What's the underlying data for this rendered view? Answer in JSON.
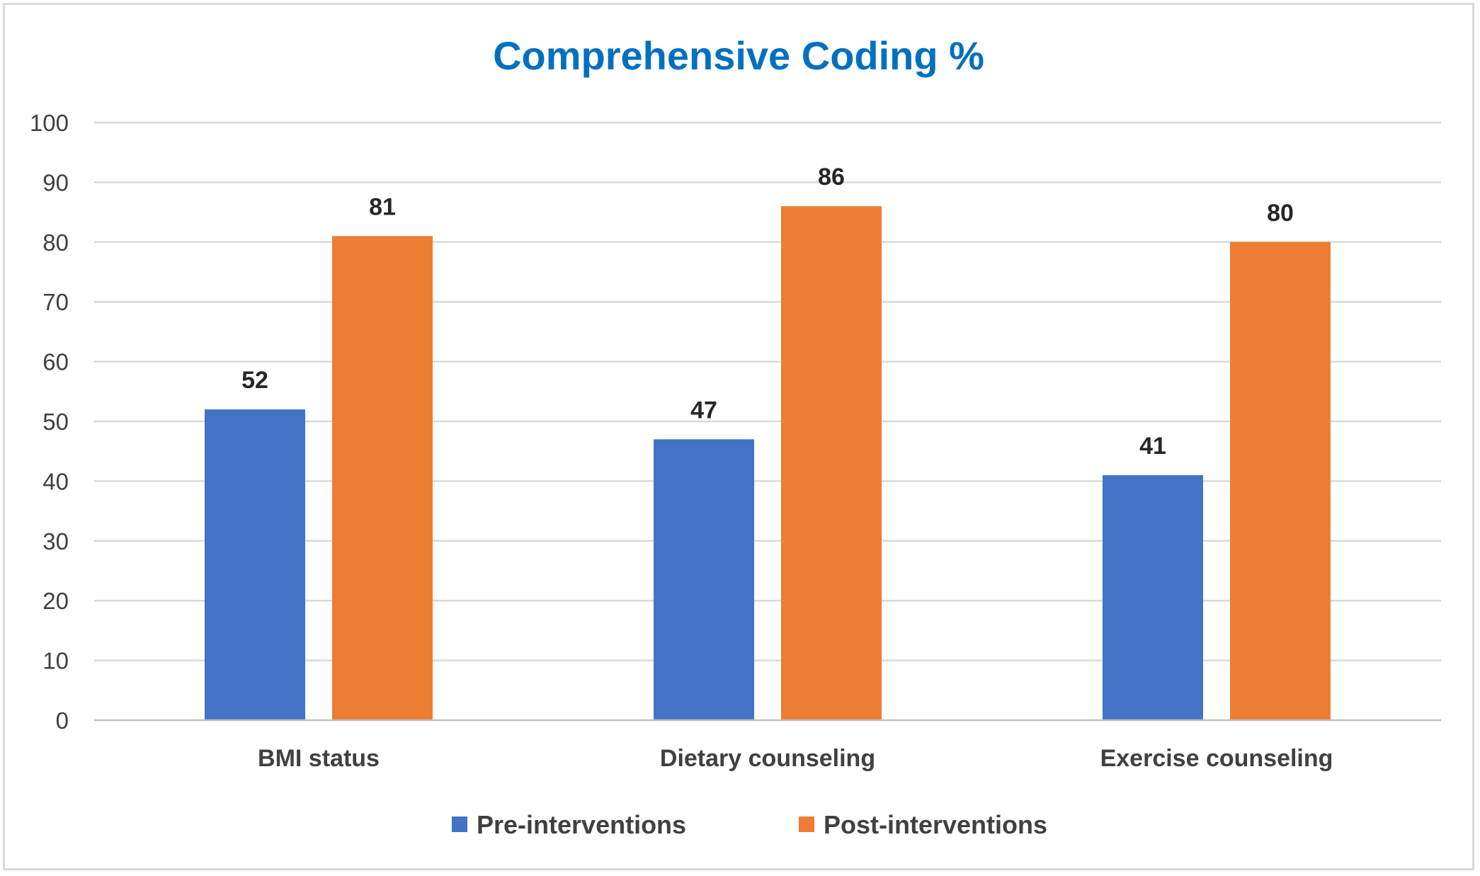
{
  "chart_data": {
    "type": "bar",
    "title": "Comprehensive Coding %",
    "xlabel": "",
    "ylabel": "",
    "ylim": [
      0,
      100
    ],
    "yticks": [
      0,
      10,
      20,
      30,
      40,
      50,
      60,
      70,
      80,
      90,
      100
    ],
    "grid": true,
    "legend_position": "bottom",
    "categories": [
      "BMI status",
      "Dietary counseling",
      "Exercise counseling"
    ],
    "series": [
      {
        "name": "Pre-interventions",
        "color": "#4472c4",
        "values": [
          52,
          47,
          41
        ]
      },
      {
        "name": "Post-interventions",
        "color": "#ed7d31",
        "values": [
          81,
          86,
          80
        ]
      }
    ]
  }
}
